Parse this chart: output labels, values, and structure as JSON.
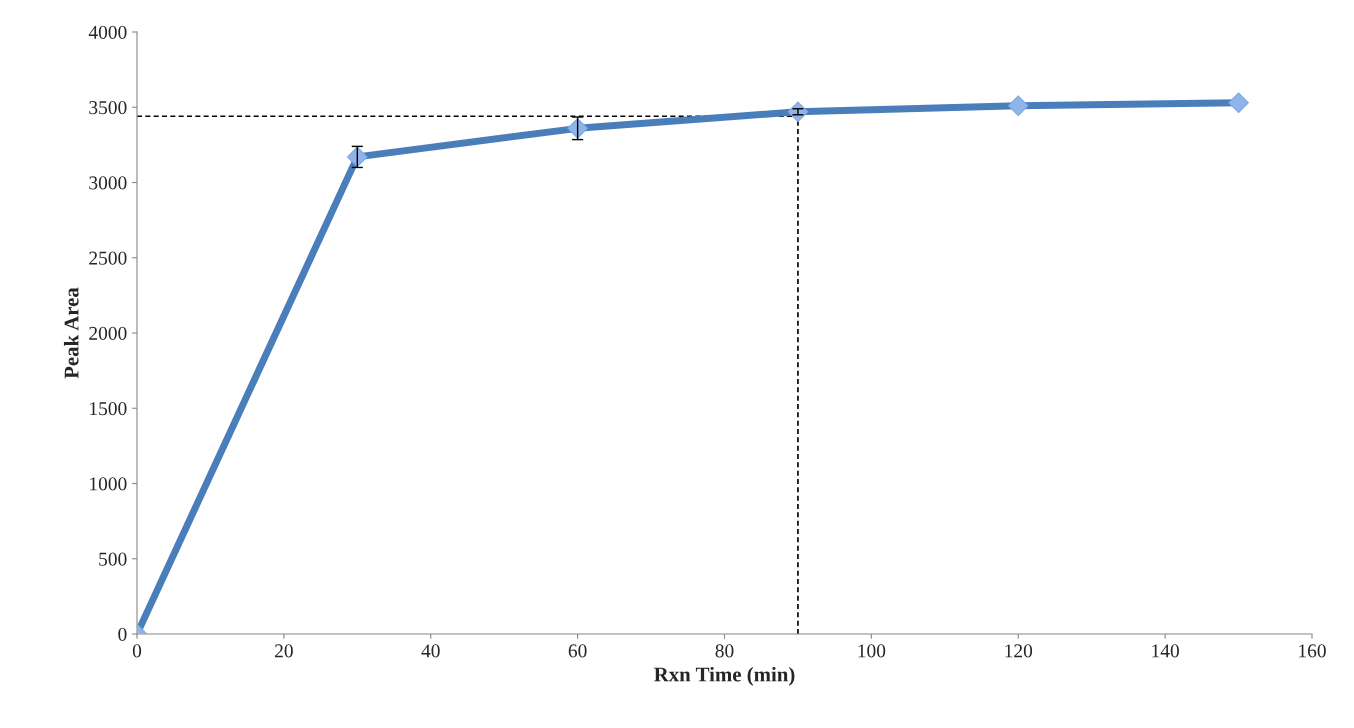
{
  "chart_data": {
    "type": "line",
    "xlabel": "Rxn Time (min)",
    "ylabel": "Peak Area",
    "xlim": [
      0,
      160
    ],
    "xticks": [
      0,
      20,
      40,
      60,
      80,
      100,
      120,
      140,
      160
    ],
    "ylim": [
      0,
      4000
    ],
    "yticks": [
      0,
      500,
      1000,
      1500,
      2000,
      2500,
      3000,
      3500,
      4000
    ],
    "grid": false,
    "legend": false,
    "series": [
      {
        "color": "#4a7ebb",
        "marker": "diamond",
        "line_style": "solid",
        "x": [
          0,
          30,
          60,
          90,
          120,
          150
        ],
        "values": [
          0,
          3170,
          3360,
          3470,
          3510,
          3530
        ],
        "errors": [
          null,
          70,
          75,
          20,
          null,
          null
        ]
      },
      {
        "color": "#000000",
        "marker": "none",
        "line_style": "dashed",
        "x": [
          0,
          90
        ],
        "values": [
          3440,
          3440
        ]
      },
      {
        "color": "#000000",
        "marker": "none",
        "line_style": "dashed",
        "x": [
          90,
          90
        ],
        "values": [
          0,
          3440
        ]
      }
    ]
  }
}
